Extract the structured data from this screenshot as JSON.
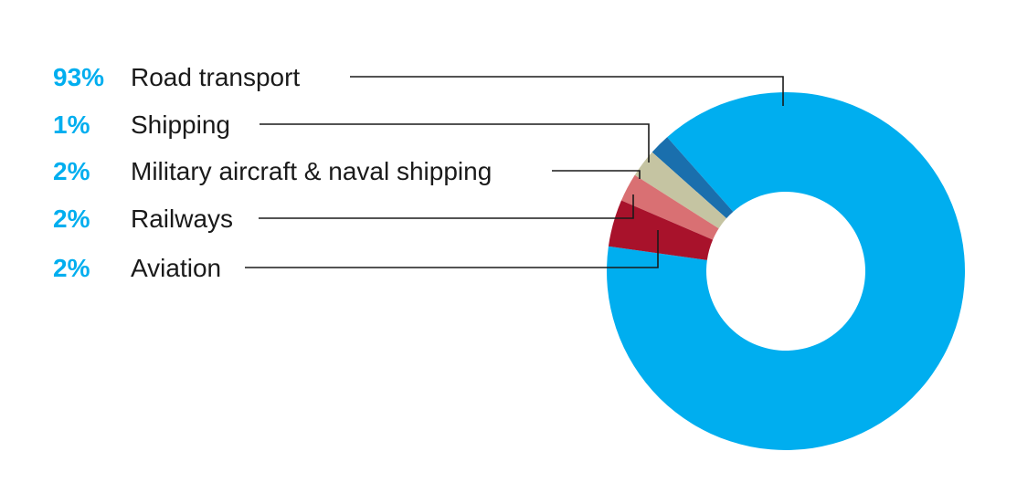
{
  "chart_data": {
    "type": "pie",
    "variant": "donut",
    "slices": [
      {
        "label": "Road transport",
        "value": 93,
        "value_label": "93%",
        "color": "#00aeef"
      },
      {
        "label": "Shipping",
        "value": 1,
        "value_label": "1%",
        "color": "#1a6fad"
      },
      {
        "label": "Military aircraft & naval shipping",
        "value": 2,
        "value_label": "2%",
        "color": "#c5c4a2"
      },
      {
        "label": "Railways",
        "value": 2,
        "value_label": "2%",
        "color": "#d97073"
      },
      {
        "label": "Aviation",
        "value": 2,
        "value_label": "2%",
        "color": "#a8122b"
      }
    ],
    "label_color": "#00aeef",
    "legend_position": "left"
  }
}
